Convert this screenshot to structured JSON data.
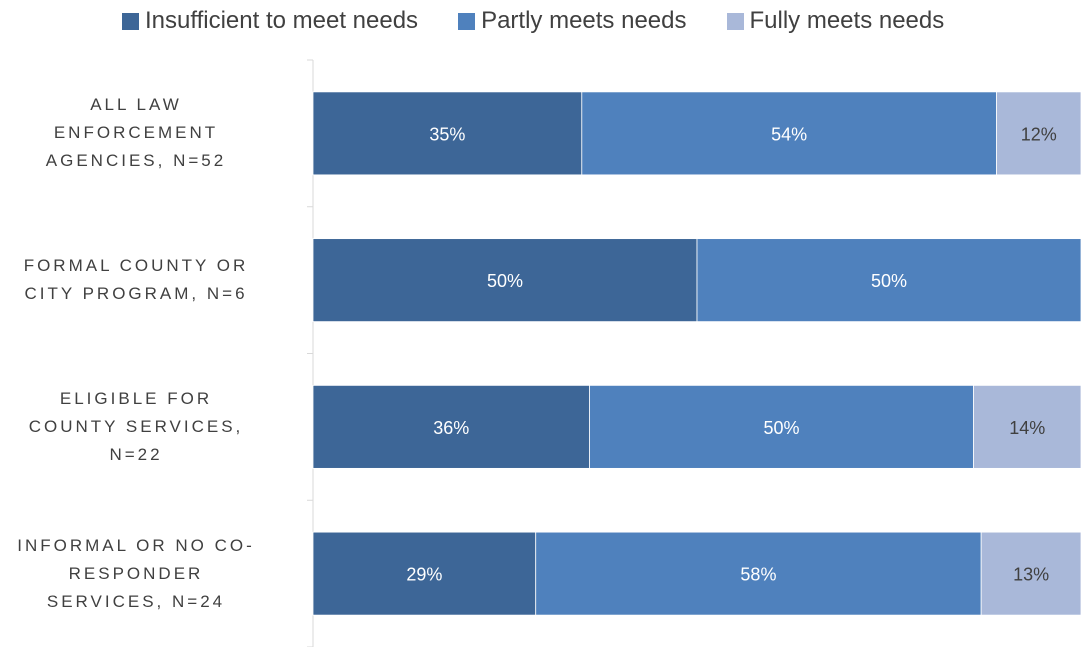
{
  "chart_data": {
    "type": "bar",
    "orientation": "horizontal",
    "stacked": true,
    "legend_position": "top",
    "xlim": [
      0,
      100
    ],
    "categories": [
      "ALL LAW ENFORCEMENT AGENCIES, N=52",
      "FORMAL COUNTY OR CITY PROGRAM, N=6",
      "ELIGIBLE FOR COUNTY SERVICES, N=22",
      "INFORMAL OR NO CO-RESPONDER SERVICES, N=24"
    ],
    "category_lines": [
      [
        "ALL LAW",
        "ENFORCEMENT",
        "AGENCIES, N=52"
      ],
      [
        "FORMAL COUNTY OR",
        "CITY PROGRAM, N=6"
      ],
      [
        "ELIGIBLE FOR",
        "COUNTY SERVICES,",
        "N=22"
      ],
      [
        "INFORMAL OR NO CO-",
        "RESPONDER",
        "SERVICES, N=24"
      ]
    ],
    "series": [
      {
        "name": "Insufficient to meet needs",
        "color": "#3d6697",
        "values": [
          35,
          50,
          36,
          29
        ],
        "labels": [
          "35%",
          "50%",
          "36%",
          "29%"
        ]
      },
      {
        "name": "Partly meets needs",
        "color": "#4f81bd",
        "values": [
          54,
          50,
          50,
          58
        ],
        "labels": [
          "54%",
          "50%",
          "50%",
          "58%"
        ]
      },
      {
        "name": "Fully meets needs",
        "color": "#a9b8d9",
        "values": [
          12,
          0,
          14,
          13
        ],
        "labels": [
          "12%",
          "",
          "14%",
          "13%"
        ]
      }
    ]
  }
}
